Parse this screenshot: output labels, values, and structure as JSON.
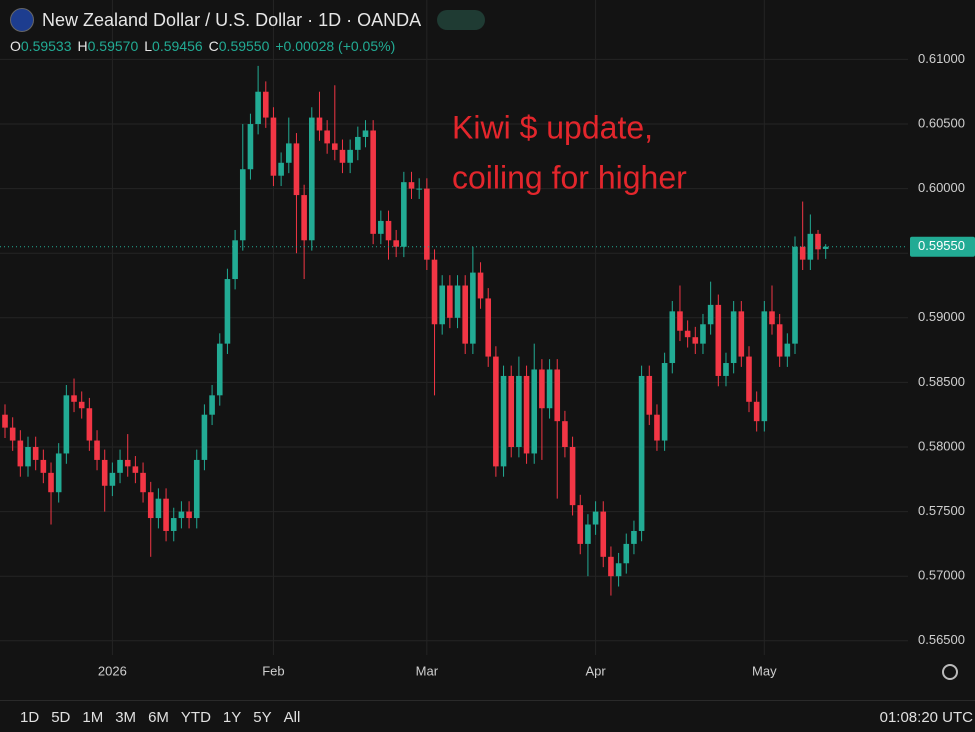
{
  "header": {
    "title": "New Zealand Dollar / U.S. Dollar · 1D · OANDA",
    "ohlc": [
      {
        "key": "O",
        "value": "0.59533"
      },
      {
        "key": "H",
        "value": "0.59570"
      },
      {
        "key": "L",
        "value": "0.59456"
      },
      {
        "key": "C",
        "value": "0.59550"
      }
    ],
    "change": "+0.00028 (+0.05%)"
  },
  "chart_data": {
    "type": "candlestick",
    "categories": [
      null,
      null,
      null,
      null,
      null,
      null,
      null,
      null,
      null,
      null,
      null,
      null,
      null,
      null,
      "2026",
      null,
      null,
      null,
      null,
      null,
      null,
      null,
      null,
      null,
      null,
      null,
      null,
      null,
      null,
      null,
      null,
      null,
      null,
      null,
      null,
      "Feb",
      null,
      null,
      null,
      null,
      null,
      null,
      null,
      null,
      null,
      null,
      null,
      null,
      null,
      null,
      null,
      null,
      null,
      null,
      null,
      "Mar",
      null,
      null,
      null,
      null,
      null,
      null,
      null,
      null,
      null,
      null,
      null,
      null,
      null,
      null,
      null,
      null,
      null,
      null,
      null,
      null,
      null,
      "Apr",
      null,
      null,
      null,
      null,
      null,
      null,
      null,
      null,
      null,
      null,
      null,
      null,
      null,
      null,
      null,
      null,
      null,
      null,
      null,
      null,
      null,
      "May",
      null,
      null,
      null,
      null,
      null,
      null,
      null,
      null
    ],
    "open": [
      0.5825,
      0.5815,
      0.5805,
      0.5785,
      0.58,
      0.579,
      0.578,
      0.5765,
      0.5795,
      0.584,
      0.5835,
      0.583,
      0.5805,
      0.579,
      0.577,
      0.578,
      0.579,
      0.5785,
      0.578,
      0.5765,
      0.5745,
      0.576,
      0.5735,
      0.5745,
      0.575,
      0.5745,
      0.579,
      0.5825,
      0.584,
      0.588,
      0.593,
      0.596,
      0.6015,
      0.605,
      0.6075,
      0.6055,
      0.601,
      0.602,
      0.6035,
      0.5995,
      0.596,
      0.6055,
      0.6045,
      0.6035,
      0.603,
      0.602,
      0.603,
      0.604,
      0.6045,
      0.5965,
      0.5975,
      0.596,
      0.5955,
      0.6005,
      0.6,
      0.6,
      0.5945,
      0.5895,
      0.5925,
      0.59,
      0.5925,
      0.588,
      0.5935,
      0.5915,
      0.587,
      0.5785,
      0.5855,
      0.58,
      0.5855,
      0.5795,
      0.586,
      0.583,
      0.586,
      0.582,
      0.58,
      0.5755,
      0.5725,
      0.574,
      0.575,
      0.5715,
      0.57,
      0.571,
      0.5725,
      0.5735,
      0.5855,
      0.5825,
      0.5805,
      0.5865,
      0.5905,
      0.589,
      0.5885,
      0.588,
      0.5895,
      0.591,
      0.5855,
      0.5865,
      0.5905,
      0.587,
      0.5835,
      0.582,
      0.5905,
      0.5895,
      0.587,
      0.588,
      0.5955,
      0.5945,
      0.5965,
      0.59533
    ],
    "high": [
      0.5833,
      0.5823,
      0.5813,
      0.5808,
      0.5808,
      0.5798,
      0.5788,
      0.5803,
      0.5848,
      0.5853,
      0.5843,
      0.5838,
      0.5813,
      0.5798,
      0.5788,
      0.5798,
      0.581,
      0.5793,
      0.5788,
      0.5773,
      0.5768,
      0.5768,
      0.5753,
      0.5758,
      0.5758,
      0.5798,
      0.5833,
      0.5848,
      0.5888,
      0.5938,
      0.5968,
      0.605,
      0.6058,
      0.6095,
      0.6083,
      0.6063,
      0.6028,
      0.6055,
      0.6043,
      0.6003,
      0.6063,
      0.6075,
      0.6053,
      0.608,
      0.6038,
      0.6038,
      0.6048,
      0.6053,
      0.6053,
      0.5983,
      0.5983,
      0.5968,
      0.6013,
      0.6013,
      0.6008,
      0.6008,
      0.5953,
      0.5933,
      0.5933,
      0.5933,
      0.5933,
      0.5955,
      0.5943,
      0.5923,
      0.5878,
      0.5863,
      0.5863,
      0.587,
      0.5863,
      0.588,
      0.5868,
      0.5868,
      0.5868,
      0.5828,
      0.5808,
      0.5763,
      0.5748,
      0.5758,
      0.5758,
      0.5723,
      0.5718,
      0.5733,
      0.5743,
      0.5863,
      0.5863,
      0.5833,
      0.5873,
      0.5913,
      0.5925,
      0.5898,
      0.5893,
      0.5903,
      0.5928,
      0.5918,
      0.5873,
      0.5913,
      0.5913,
      0.5878,
      0.5843,
      0.5913,
      0.5925,
      0.5903,
      0.5888,
      0.5963,
      0.599,
      0.598,
      0.5968,
      0.5957
    ],
    "low": [
      0.5807,
      0.5797,
      0.5777,
      0.5777,
      0.5782,
      0.5772,
      0.574,
      0.5757,
      0.5787,
      0.5827,
      0.5822,
      0.5797,
      0.5782,
      0.575,
      0.5762,
      0.5772,
      0.5777,
      0.5772,
      0.5757,
      0.5715,
      0.5737,
      0.5727,
      0.5727,
      0.5737,
      0.5737,
      0.5737,
      0.5782,
      0.5817,
      0.5832,
      0.5872,
      0.5922,
      0.5952,
      0.6007,
      0.6042,
      0.6047,
      0.6002,
      0.6002,
      0.6012,
      0.595,
      0.593,
      0.5952,
      0.6037,
      0.6027,
      0.6022,
      0.6012,
      0.6012,
      0.6022,
      0.6032,
      0.5957,
      0.5957,
      0.5945,
      0.5947,
      0.5947,
      0.5992,
      0.5992,
      0.5937,
      0.584,
      0.5887,
      0.5892,
      0.5892,
      0.5872,
      0.5872,
      0.5907,
      0.5862,
      0.5777,
      0.5777,
      0.5792,
      0.5792,
      0.5787,
      0.5787,
      0.579,
      0.5822,
      0.576,
      0.5792,
      0.5747,
      0.5717,
      0.57,
      0.5732,
      0.5707,
      0.5685,
      0.5692,
      0.5702,
      0.5717,
      0.5727,
      0.5817,
      0.5797,
      0.5797,
      0.5857,
      0.5882,
      0.5877,
      0.5872,
      0.5872,
      0.5887,
      0.5847,
      0.5847,
      0.5857,
      0.5862,
      0.5827,
      0.5812,
      0.5812,
      0.5887,
      0.5862,
      0.5862,
      0.5872,
      0.5937,
      0.5937,
      0.5945,
      0.59456
    ],
    "close": [
      0.5815,
      0.5805,
      0.5785,
      0.58,
      0.579,
      0.578,
      0.5765,
      0.5795,
      0.584,
      0.5835,
      0.583,
      0.5805,
      0.579,
      0.577,
      0.578,
      0.579,
      0.5785,
      0.578,
      0.5765,
      0.5745,
      0.576,
      0.5735,
      0.5745,
      0.575,
      0.5745,
      0.579,
      0.5825,
      0.584,
      0.588,
      0.593,
      0.596,
      0.6015,
      0.605,
      0.6075,
      0.6055,
      0.601,
      0.602,
      0.6035,
      0.5995,
      0.596,
      0.6055,
      0.6045,
      0.6035,
      0.603,
      0.602,
      0.603,
      0.604,
      0.6045,
      0.5965,
      0.5975,
      0.596,
      0.5955,
      0.6005,
      0.6,
      0.6,
      0.5945,
      0.5895,
      0.5925,
      0.59,
      0.5925,
      0.588,
      0.5935,
      0.5915,
      0.587,
      0.5785,
      0.5855,
      0.58,
      0.5855,
      0.5795,
      0.586,
      0.583,
      0.586,
      0.582,
      0.58,
      0.5755,
      0.5725,
      0.574,
      0.575,
      0.5715,
      0.57,
      0.571,
      0.5725,
      0.5735,
      0.5855,
      0.5825,
      0.5805,
      0.5865,
      0.5905,
      0.589,
      0.5885,
      0.588,
      0.5895,
      0.591,
      0.5855,
      0.5865,
      0.5905,
      0.587,
      0.5835,
      0.582,
      0.5905,
      0.5895,
      0.587,
      0.588,
      0.5955,
      0.5945,
      0.5965,
      0.5953,
      0.5955
    ],
    "up_color": "#22ab94",
    "down_color": "#f23645",
    "ylim": [
      0.5639,
      0.6146
    ],
    "yticks": [
      {
        "value": 0.565,
        "label": "0.56500"
      },
      {
        "value": 0.57,
        "label": "0.57000"
      },
      {
        "value": 0.575,
        "label": "0.57500"
      },
      {
        "value": 0.58,
        "label": "0.58000"
      },
      {
        "value": 0.585,
        "label": "0.58500"
      },
      {
        "value": 0.59,
        "label": "0.59000"
      },
      {
        "value": 0.595,
        "label": "0.59500"
      },
      {
        "value": 0.6,
        "label": "0.60000"
      },
      {
        "value": 0.605,
        "label": "0.60500"
      },
      {
        "value": 0.61,
        "label": "0.61000"
      }
    ],
    "grid": true,
    "last_price": {
      "value": 0.5955,
      "label": "0.59550"
    },
    "annotation": [
      "Kiwi $ update,",
      "coiling for higher"
    ]
  },
  "toolbar": {
    "ranges": [
      "1D",
      "5D",
      "1M",
      "3M",
      "6M",
      "YTD",
      "1Y",
      "5Y",
      "All"
    ],
    "time": "01:08:20 UTC"
  }
}
